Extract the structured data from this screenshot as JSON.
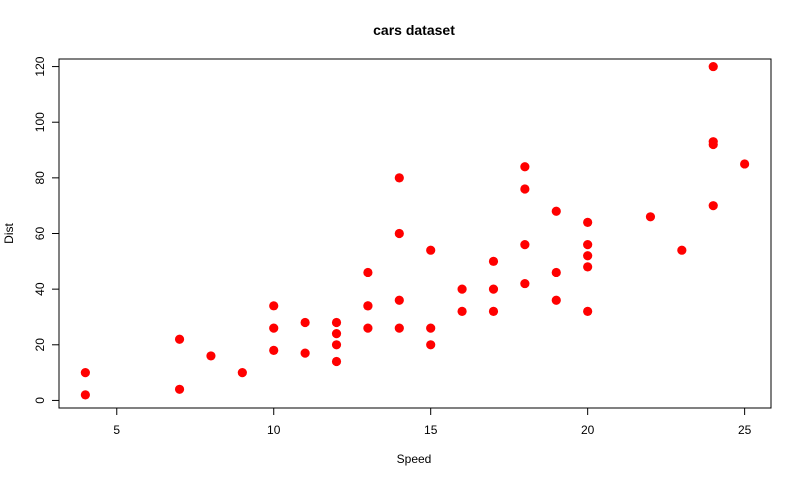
{
  "chart_data": {
    "type": "scatter",
    "title": "cars dataset",
    "xlabel": "Speed",
    "ylabel": "Dist",
    "xlim": [
      3.16,
      25.84
    ],
    "ylim": [
      -2.72,
      122.72
    ],
    "xticks": [
      5,
      10,
      15,
      20,
      25
    ],
    "yticks": [
      0,
      20,
      40,
      60,
      80,
      100,
      120
    ],
    "grid": false,
    "legend": "none",
    "marker_color": "#ff0000",
    "series": [
      {
        "x": [
          4,
          4,
          7,
          7,
          8,
          9,
          10,
          10,
          10,
          11,
          11,
          12,
          12,
          12,
          12,
          13,
          13,
          13,
          13,
          14,
          14,
          14,
          14,
          15,
          15,
          15,
          16,
          16,
          17,
          17,
          17,
          18,
          18,
          18,
          18,
          19,
          19,
          19,
          20,
          20,
          20,
          20,
          20,
          22,
          23,
          24,
          24,
          24,
          24,
          25
        ],
        "y": [
          2,
          10,
          4,
          22,
          16,
          10,
          18,
          26,
          34,
          17,
          28,
          14,
          20,
          24,
          28,
          26,
          34,
          34,
          46,
          26,
          36,
          60,
          80,
          20,
          26,
          54,
          32,
          40,
          32,
          40,
          50,
          42,
          56,
          76,
          84,
          36,
          46,
          68,
          32,
          48,
          52,
          56,
          64,
          66,
          54,
          70,
          92,
          93,
          120,
          85
        ]
      }
    ]
  }
}
